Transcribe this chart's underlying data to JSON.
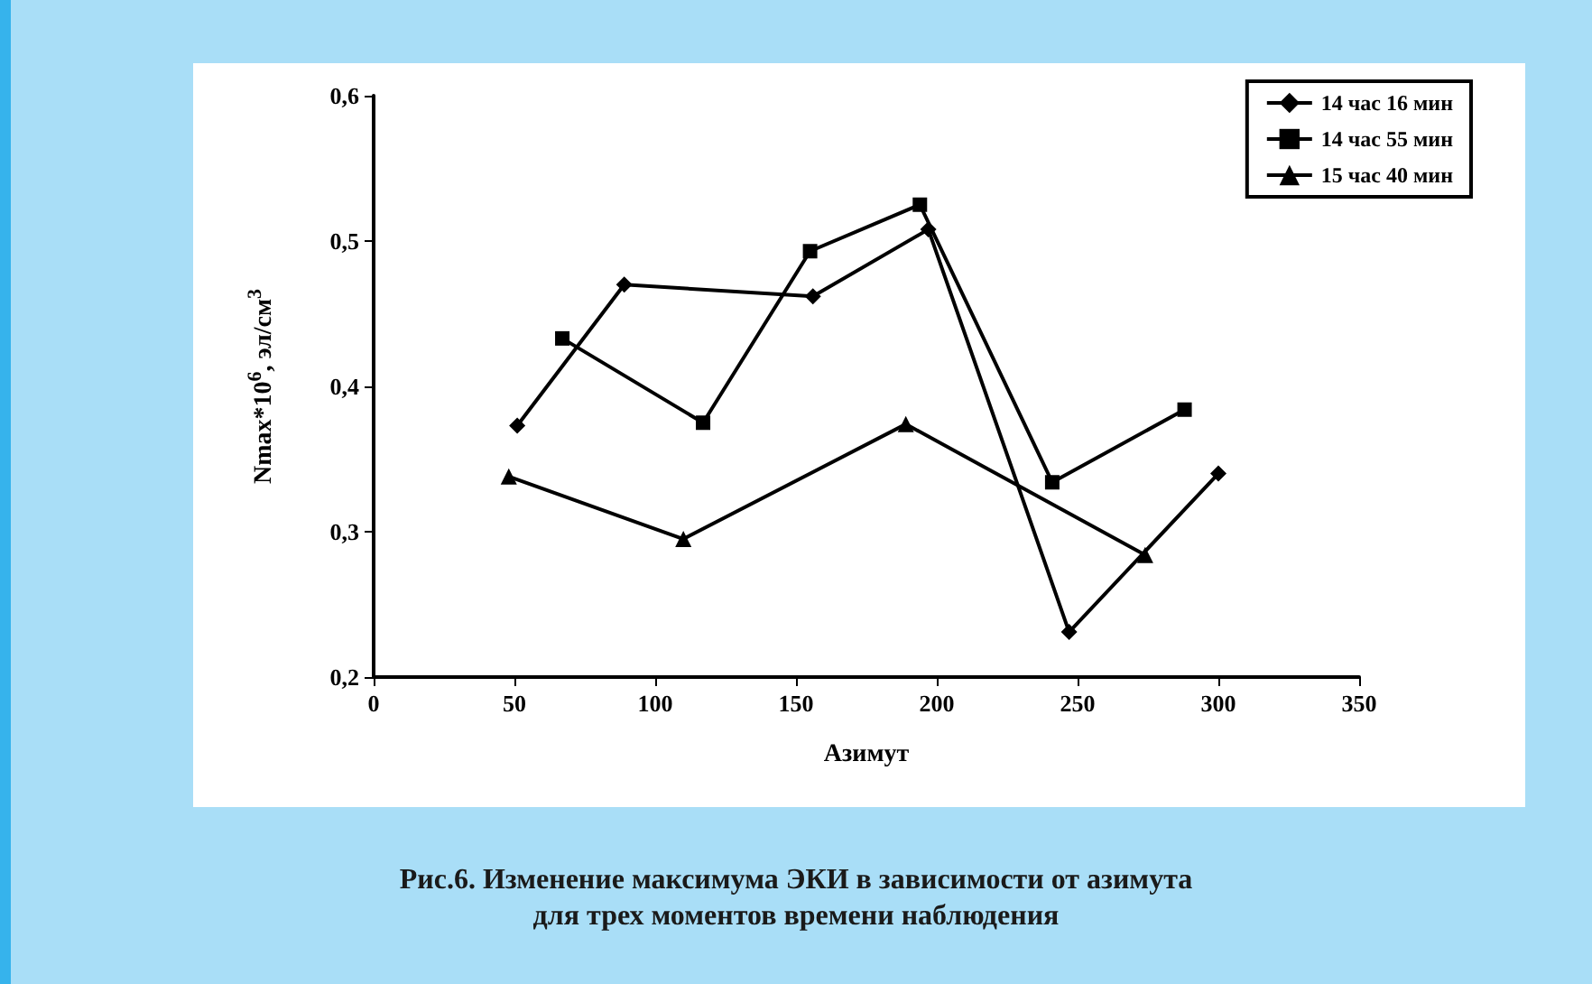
{
  "chart_data": {
    "type": "line",
    "title": "Рис.6. Изменение максимума ЭКИ в зависимости от азимута\nдля трех моментов времени наблюдения",
    "xlabel": "Азимут",
    "ylabel": "Nmax*10$^{6}$, эл/см$^{3}$",
    "xlim": [
      0,
      350
    ],
    "xticks": [
      0,
      50,
      100,
      150,
      200,
      250,
      300,
      350
    ],
    "ylim": [
      0.2,
      0.6
    ],
    "yticks": [
      {
        "value": 0.2,
        "label": "0,2"
      },
      {
        "value": 0.3,
        "label": "0,3"
      },
      {
        "value": 0.4,
        "label": "0,4"
      },
      {
        "value": 0.5,
        "label": "0,5"
      },
      {
        "value": 0.6,
        "label": "0,6"
      }
    ],
    "grid": false,
    "legend": "top right",
    "series": [
      {
        "name": "14 час 16 мин",
        "color": "#000000",
        "marker": "diamond",
        "x": [
          51,
          89,
          156,
          197,
          247,
          300
        ],
        "values": [
          0.373,
          0.47,
          0.462,
          0.508,
          0.231,
          0.34
        ]
      },
      {
        "name": "14 час 55 мин",
        "color": "#000000",
        "marker": "square",
        "x": [
          67,
          117,
          155,
          194,
          241,
          288
        ],
        "values": [
          0.433,
          0.375,
          0.493,
          0.525,
          0.334,
          0.384
        ]
      },
      {
        "name": "15 час 40 мин",
        "color": "#000000",
        "marker": "triangle",
        "x": [
          48,
          110,
          189,
          274
        ],
        "values": [
          0.338,
          0.295,
          0.374,
          0.284
        ]
      }
    ]
  }
}
